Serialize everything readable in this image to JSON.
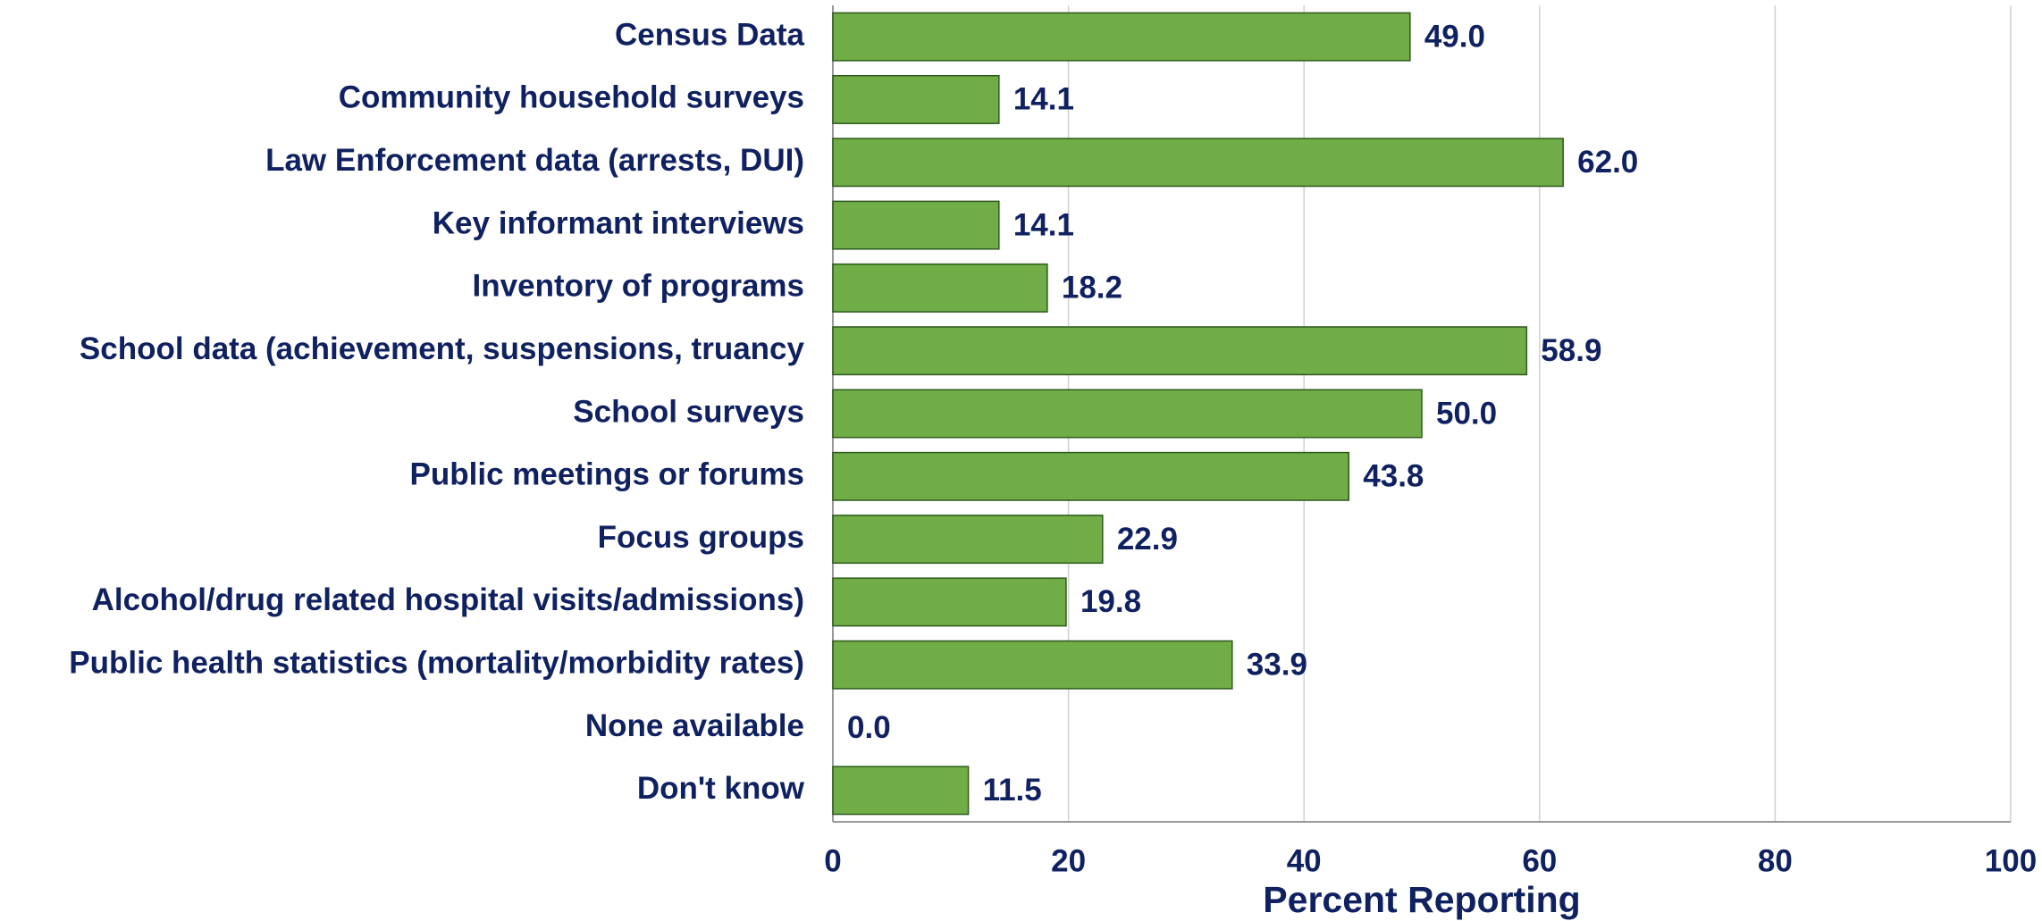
{
  "chart_data": {
    "type": "barh",
    "categories": [
      "Census Data",
      "Community household surveys",
      "Law Enforcement data (arrests, DUI)",
      "Key informant interviews",
      "Inventory of programs",
      "School data (achievement, suspensions, truancy",
      "School surveys",
      "Public meetings or forums",
      "Focus groups",
      "Alcohol/drug related hospital visits/admissions)",
      "Public health statistics (mortality/morbidity rates)",
      "None available",
      "Don't know"
    ],
    "values": [
      49.0,
      14.1,
      62.0,
      14.1,
      18.2,
      58.9,
      50.0,
      43.8,
      22.9,
      19.8,
      33.9,
      0.0,
      11.5
    ],
    "value_labels": [
      "49.0",
      "14.1",
      "62.0",
      "14.1",
      "18.2",
      "58.9",
      "50.0",
      "43.8",
      "22.9",
      "19.8",
      "33.9",
      "0.0",
      "11.5"
    ],
    "color": "#70ad47",
    "xlabel": "Percent Reporting",
    "xlim": [
      0,
      100
    ],
    "xticks": [
      0,
      20,
      40,
      60,
      80,
      100
    ],
    "grid": true
  }
}
